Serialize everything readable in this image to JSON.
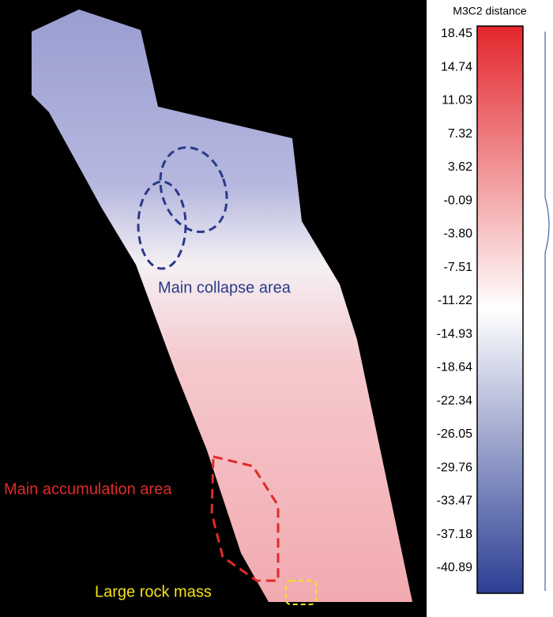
{
  "colorbar": {
    "title": "M3C2 distance",
    "ticks": [
      "18.45",
      "14.74",
      "11.03",
      "7.32",
      "3.62",
      "-0.09",
      "-3.80",
      "-7.51",
      "-11.22",
      "-14.93",
      "-18.64",
      "-22.34",
      "-26.05",
      "-29.76",
      "-33.47",
      "-37.18",
      "-40.89"
    ]
  },
  "annotations": {
    "collapse": "Main collapse area",
    "accumulation": "Main accumulation area",
    "rock": "Large rock mass"
  }
}
